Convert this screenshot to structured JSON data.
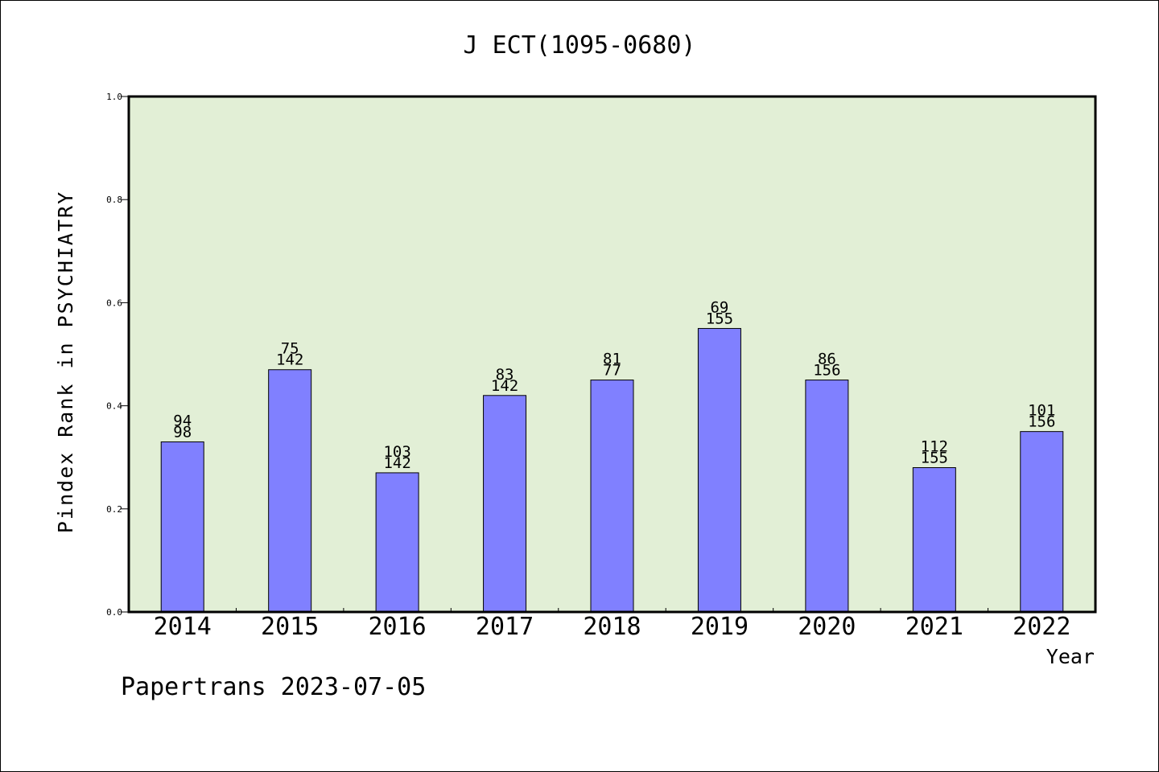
{
  "chart_data": {
    "type": "bar",
    "title": "J ECT(1095-0680)",
    "xlabel": "Year",
    "ylabel": "Pindex Rank in PSYCHIATRY",
    "ylim": [
      0,
      1.0
    ],
    "yticks": [
      "0.0",
      "0.2",
      "0.4",
      "0.6",
      "0.8",
      "1.0"
    ],
    "categories": [
      "2014",
      "2015",
      "2016",
      "2017",
      "2018",
      "2019",
      "2020",
      "2021",
      "2022"
    ],
    "values": [
      0.33,
      0.47,
      0.27,
      0.42,
      0.45,
      0.55,
      0.45,
      0.28,
      0.35
    ],
    "bar_label_top": [
      "94",
      "75",
      "103",
      "83",
      "81",
      "69",
      "86",
      "112",
      "101"
    ],
    "bar_label_bottom": [
      "98",
      "142",
      "142",
      "142",
      "77",
      "155",
      "156",
      "155",
      "156"
    ],
    "grid": false,
    "legend": "none"
  },
  "colors": {
    "plot_background": "#e2efd6",
    "bar_fill": "#8080ff",
    "bar_edge": "#000000"
  },
  "footer": {
    "credit": "Papertrans 2023-07-05"
  }
}
